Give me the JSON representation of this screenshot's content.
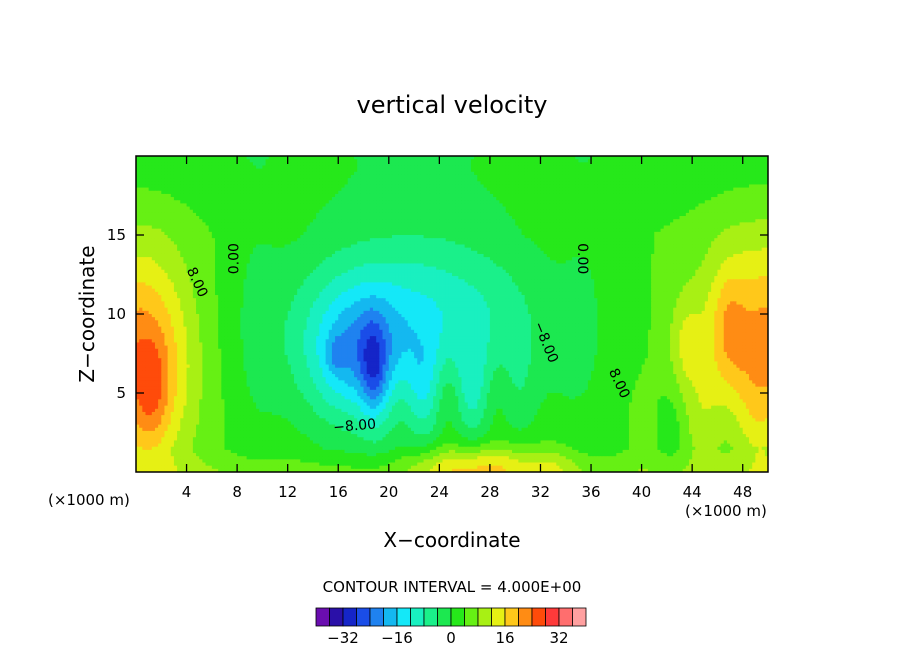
{
  "chart_data": {
    "type": "heatmap",
    "title": "vertical velocity",
    "xlabel": "X−coordinate",
    "ylabel": "Z−coordinate",
    "x_unit_left": "(×1000 m)",
    "x_unit_right": "(×1000 m)",
    "xlim": [
      0,
      50
    ],
    "ylim": [
      0,
      20
    ],
    "x_ticks": [
      4,
      8,
      12,
      16,
      20,
      24,
      28,
      32,
      36,
      40,
      44,
      48
    ],
    "y_ticks": [
      5,
      10,
      15
    ],
    "contour_interval_label": "CONTOUR INTERVAL = 4.000E+00",
    "contour_interval": 4,
    "contour_labels": [
      {
        "text": "0.00",
        "x": 7.8,
        "y": 13.5,
        "rotate": -90
      },
      {
        "text": "0.00",
        "x": 35.3,
        "y": 13.5,
        "rotate": 90
      },
      {
        "text": "8.00",
        "x": 4.8,
        "y": 12.0,
        "rotate": 65
      },
      {
        "text": "8.00",
        "x": 38.2,
        "y": 5.6,
        "rotate": 65
      },
      {
        "text": "−8.00",
        "x": 17.3,
        "y": 2.9,
        "rotate": -5
      },
      {
        "text": "−8.00",
        "x": 32.4,
        "y": 8.2,
        "rotate": 68
      }
    ],
    "colorbar": {
      "levels": [
        -36,
        -32,
        -28,
        -24,
        -20,
        -16,
        -12,
        -8,
        -4,
        0,
        4,
        8,
        12,
        16,
        20,
        24,
        28,
        32,
        36
      ],
      "colors": [
        "#6a0db0",
        "#2a10a8",
        "#1525c8",
        "#1a4de8",
        "#1f82f0",
        "#14b8f0",
        "#14e8f8",
        "#19f0c0",
        "#1af08a",
        "#1ce850",
        "#26e81a",
        "#66f014",
        "#a8f014",
        "#e6f014",
        "#ffc81a",
        "#ff8c14",
        "#ff4b0a",
        "#ff3a3a",
        "#ff6e6e",
        "#ffa0a0"
      ],
      "tick_labels": [
        {
          "value": -32,
          "text": "−32"
        },
        {
          "value": -16,
          "text": "−16"
        },
        {
          "value": 0,
          "text": "0"
        },
        {
          "value": 16,
          "text": "16"
        },
        {
          "value": 32,
          "text": "32"
        }
      ]
    }
  }
}
